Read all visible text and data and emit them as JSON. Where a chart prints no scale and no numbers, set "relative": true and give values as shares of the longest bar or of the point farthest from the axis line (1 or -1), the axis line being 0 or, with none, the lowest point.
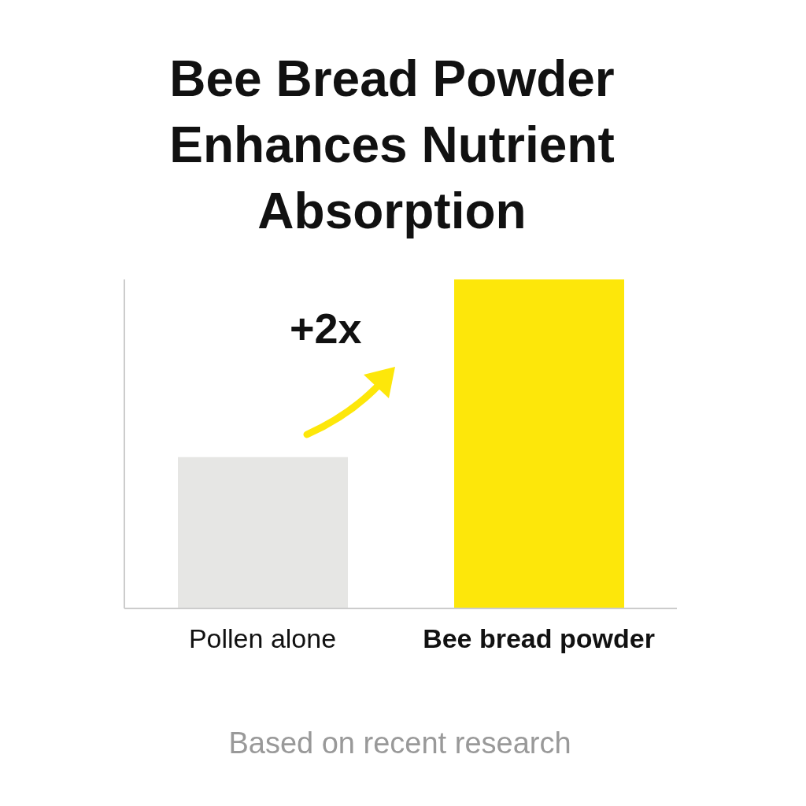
{
  "chart_data": {
    "type": "bar",
    "title": "Bee Bread Powder Enhances Nutrient Absorption",
    "categories": [
      "Pollen alone",
      "Bee bread powder"
    ],
    "values": [
      0.46,
      1
    ],
    "colors": [
      "#e6e6e4",
      "#fde70a"
    ],
    "relative": true,
    "annotations": [
      "+2x",
      "Based on recent research"
    ]
  }
}
